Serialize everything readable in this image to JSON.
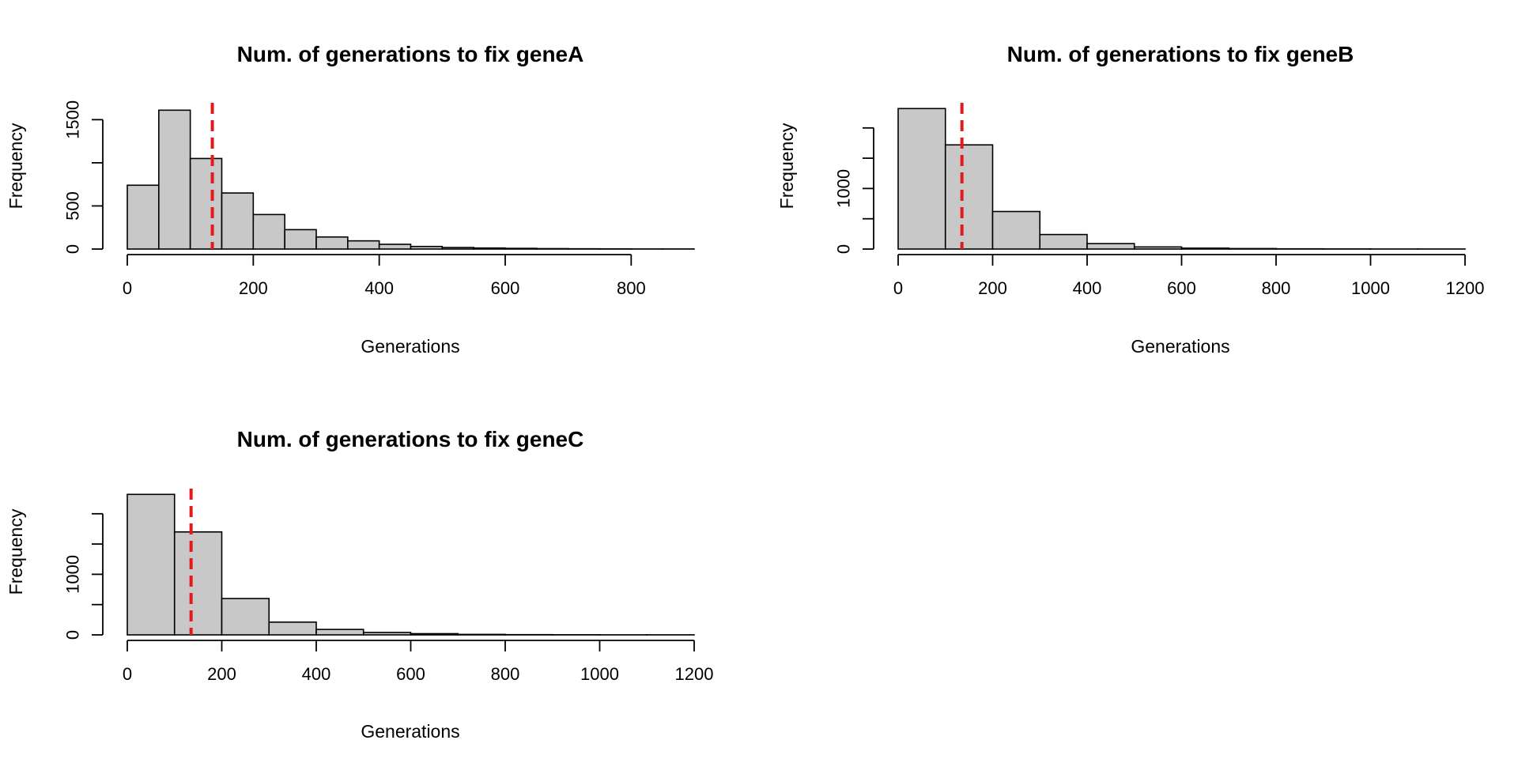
{
  "figure": {
    "background": "#ffffff",
    "bar_fill": "#c8c8c8",
    "bar_stroke": "#000000",
    "mean_line_color": "#e31a1c"
  },
  "chart_data": [
    {
      "id": "geneA",
      "type": "bar",
      "subtype": "histogram",
      "title": "Num. of generations to fix  geneA",
      "xlabel": "Generations",
      "ylabel": "Frequency",
      "bin_width": 50,
      "bins": [
        [
          0,
          50
        ],
        [
          50,
          100
        ],
        [
          100,
          150
        ],
        [
          150,
          200
        ],
        [
          200,
          250
        ],
        [
          250,
          300
        ],
        [
          300,
          350
        ],
        [
          350,
          400
        ],
        [
          400,
          450
        ],
        [
          450,
          500
        ],
        [
          500,
          550
        ],
        [
          550,
          600
        ],
        [
          600,
          650
        ],
        [
          650,
          700
        ],
        [
          700,
          750
        ],
        [
          750,
          800
        ],
        [
          800,
          850
        ],
        [
          850,
          900
        ]
      ],
      "values": [
        740,
        1610,
        1050,
        650,
        400,
        225,
        140,
        95,
        55,
        30,
        18,
        12,
        8,
        5,
        3,
        2,
        1,
        1
      ],
      "xlim": [
        0,
        900
      ],
      "ylim": [
        0,
        1650
      ],
      "x_ticks": [
        0,
        200,
        400,
        600,
        800
      ],
      "x_tick_labels": [
        "0",
        "200",
        "400",
        "600",
        "800"
      ],
      "y_ticks": [
        0,
        500,
        1000,
        1500
      ],
      "y_tick_labels": [
        "0",
        "500",
        "",
        "1500"
      ],
      "mean_line": {
        "x": 135,
        "style": "dashed",
        "color": "#e31a1c"
      },
      "grid": false,
      "legend": "none"
    },
    {
      "id": "geneB",
      "type": "bar",
      "subtype": "histogram",
      "title": "Num. of generations to fix  geneB",
      "xlabel": "Generations",
      "ylabel": "Frequency",
      "bin_width": 100,
      "bins": [
        [
          0,
          100
        ],
        [
          100,
          200
        ],
        [
          200,
          300
        ],
        [
          300,
          400
        ],
        [
          400,
          500
        ],
        [
          500,
          600
        ],
        [
          600,
          700
        ],
        [
          700,
          800
        ],
        [
          800,
          900
        ],
        [
          900,
          1000
        ],
        [
          1000,
          1100
        ],
        [
          1100,
          1200
        ]
      ],
      "values": [
        2320,
        1720,
        620,
        240,
        90,
        35,
        15,
        8,
        4,
        2,
        1,
        1
      ],
      "xlim": [
        0,
        1200
      ],
      "ylim": [
        0,
        2350
      ],
      "x_ticks": [
        0,
        200,
        400,
        600,
        800,
        1000,
        1200
      ],
      "x_tick_labels": [
        "0",
        "200",
        "400",
        "600",
        "800",
        "1000",
        "1200"
      ],
      "y_ticks": [
        0,
        500,
        1000,
        1500,
        2000
      ],
      "y_tick_labels": [
        "0",
        "",
        "1000",
        "",
        ""
      ],
      "mean_line": {
        "x": 135,
        "style": "dashed",
        "color": "#e31a1c"
      },
      "grid": false,
      "legend": "none"
    },
    {
      "id": "geneC",
      "type": "bar",
      "subtype": "histogram",
      "title": "Num. of generations to fix  geneC",
      "xlabel": "Generations",
      "ylabel": "Frequency",
      "bin_width": 100,
      "bins": [
        [
          0,
          100
        ],
        [
          100,
          200
        ],
        [
          200,
          300
        ],
        [
          300,
          400
        ],
        [
          400,
          500
        ],
        [
          500,
          600
        ],
        [
          600,
          700
        ],
        [
          700,
          800
        ],
        [
          800,
          900
        ],
        [
          900,
          1000
        ],
        [
          1000,
          1100
        ],
        [
          1100,
          1200
        ]
      ],
      "values": [
        2320,
        1700,
        600,
        210,
        90,
        40,
        20,
        8,
        4,
        2,
        1,
        1
      ],
      "xlim": [
        0,
        1200
      ],
      "ylim": [
        0,
        2350
      ],
      "x_ticks": [
        0,
        200,
        400,
        600,
        800,
        1000,
        1200
      ],
      "x_tick_labels": [
        "0",
        "200",
        "400",
        "600",
        "800",
        "1000",
        "1200"
      ],
      "y_ticks": [
        0,
        500,
        1000,
        1500,
        2000
      ],
      "y_tick_labels": [
        "0",
        "",
        "1000",
        "",
        ""
      ],
      "mean_line": {
        "x": 135,
        "style": "dashed",
        "color": "#e31a1c"
      },
      "grid": false,
      "legend": "none"
    }
  ]
}
